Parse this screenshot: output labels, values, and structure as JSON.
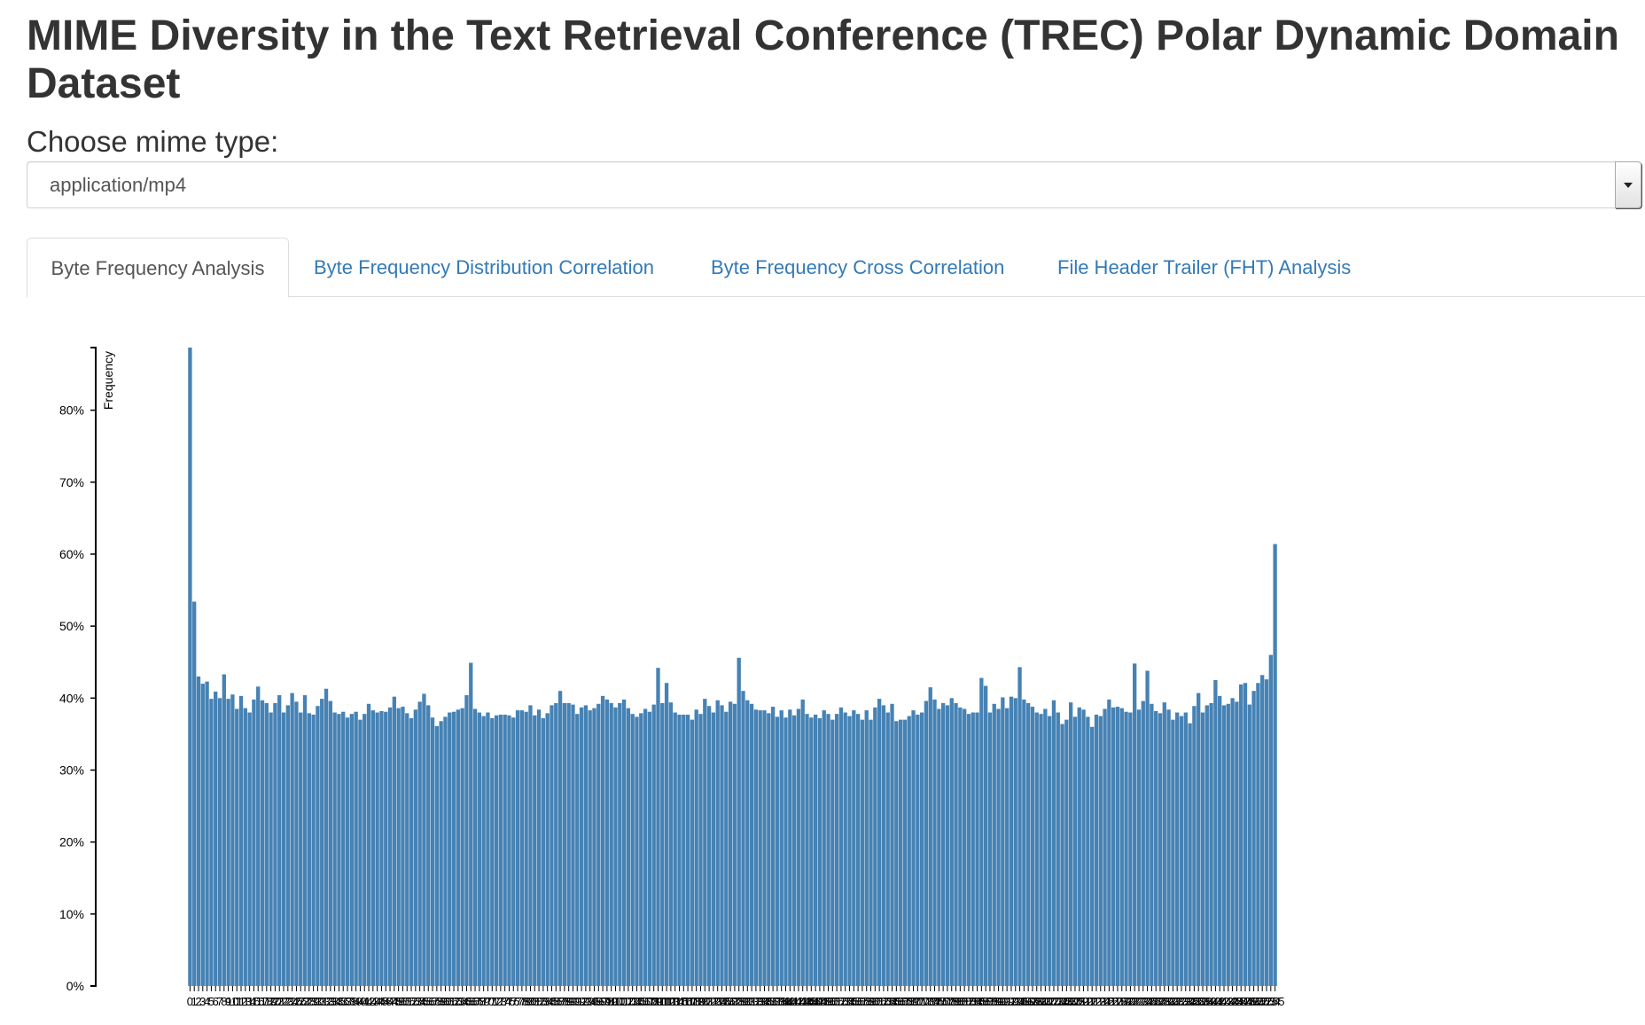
{
  "page": {
    "title": "MIME Diversity in the Text Retrieval Conference (TREC) Polar Dynamic Domain Dataset",
    "choose_label": "Choose mime type:"
  },
  "mime_select": {
    "selected": "application/mp4"
  },
  "tabs": [
    {
      "label": "Byte Frequency Analysis",
      "active": true
    },
    {
      "label": "Byte Frequency Distribution Correlation",
      "active": false
    },
    {
      "label": "Byte Frequency Cross Correlation",
      "active": false
    },
    {
      "label": "File Header Trailer (FHT) Analysis",
      "active": false
    }
  ],
  "colors": {
    "bar": "#4682b4",
    "link": "#337ab7",
    "title": "#333333"
  },
  "chart_data": {
    "type": "bar",
    "ylabel": "Frequency",
    "xlabel": "",
    "ylim": [
      0,
      0.887
    ],
    "yticks": [
      0,
      0.1,
      0.2,
      0.3,
      0.4,
      0.5,
      0.6,
      0.7,
      0.8
    ],
    "ytick_labels": [
      "0%",
      "10%",
      "20%",
      "30%",
      "40%",
      "50%",
      "60%",
      "70%",
      "80%"
    ],
    "categories_range": [
      0,
      255
    ],
    "category_step": 1,
    "values": [
      0.887,
      0.534,
      0.43,
      0.42,
      0.423,
      0.399,
      0.409,
      0.4,
      0.433,
      0.399,
      0.405,
      0.385,
      0.403,
      0.386,
      0.38,
      0.398,
      0.416,
      0.397,
      0.393,
      0.38,
      0.393,
      0.404,
      0.38,
      0.39,
      0.407,
      0.395,
      0.38,
      0.404,
      0.379,
      0.377,
      0.389,
      0.399,
      0.413,
      0.396,
      0.38,
      0.378,
      0.381,
      0.373,
      0.378,
      0.381,
      0.37,
      0.378,
      0.392,
      0.383,
      0.38,
      0.382,
      0.381,
      0.387,
      0.402,
      0.386,
      0.388,
      0.379,
      0.372,
      0.384,
      0.395,
      0.406,
      0.39,
      0.373,
      0.361,
      0.368,
      0.374,
      0.38,
      0.381,
      0.384,
      0.386,
      0.404,
      0.449,
      0.385,
      0.38,
      0.375,
      0.38,
      0.372,
      0.376,
      0.377,
      0.377,
      0.376,
      0.373,
      0.383,
      0.383,
      0.381,
      0.39,
      0.376,
      0.384,
      0.372,
      0.379,
      0.39,
      0.393,
      0.41,
      0.393,
      0.393,
      0.391,
      0.378,
      0.387,
      0.39,
      0.383,
      0.386,
      0.392,
      0.403,
      0.398,
      0.393,
      0.387,
      0.393,
      0.398,
      0.386,
      0.378,
      0.374,
      0.379,
      0.385,
      0.381,
      0.391,
      0.442,
      0.393,
      0.421,
      0.394,
      0.38,
      0.377,
      0.377,
      0.377,
      0.37,
      0.384,
      0.378,
      0.399,
      0.389,
      0.38,
      0.397,
      0.39,
      0.381,
      0.395,
      0.392,
      0.456,
      0.41,
      0.397,
      0.392,
      0.384,
      0.383,
      0.383,
      0.379,
      0.388,
      0.374,
      0.383,
      0.373,
      0.384,
      0.376,
      0.385,
      0.398,
      0.378,
      0.373,
      0.377,
      0.372,
      0.383,
      0.378,
      0.37,
      0.378,
      0.387,
      0.38,
      0.375,
      0.383,
      0.378,
      0.37,
      0.383,
      0.37,
      0.387,
      0.399,
      0.39,
      0.38,
      0.392,
      0.368,
      0.37,
      0.37,
      0.375,
      0.383,
      0.377,
      0.38,
      0.396,
      0.415,
      0.398,
      0.385,
      0.393,
      0.39,
      0.4,
      0.393,
      0.387,
      0.385,
      0.378,
      0.38,
      0.38,
      0.428,
      0.417,
      0.38,
      0.392,
      0.385,
      0.401,
      0.386,
      0.402,
      0.4,
      0.443,
      0.398,
      0.393,
      0.388,
      0.38,
      0.378,
      0.385,
      0.375,
      0.397,
      0.38,
      0.364,
      0.37,
      0.394,
      0.374,
      0.387,
      0.384,
      0.374,
      0.36,
      0.377,
      0.375,
      0.385,
      0.398,
      0.387,
      0.388,
      0.386,
      0.381,
      0.38,
      0.448,
      0.384,
      0.396,
      0.438,
      0.392,
      0.382,
      0.379,
      0.394,
      0.384,
      0.37,
      0.38,
      0.375,
      0.38,
      0.365,
      0.389,
      0.407,
      0.38,
      0.39,
      0.393,
      0.425,
      0.403,
      0.39,
      0.392,
      0.4,
      0.395,
      0.419,
      0.421,
      0.391,
      0.41,
      0.421,
      0.432,
      0.426,
      0.46,
      0.614
    ]
  }
}
